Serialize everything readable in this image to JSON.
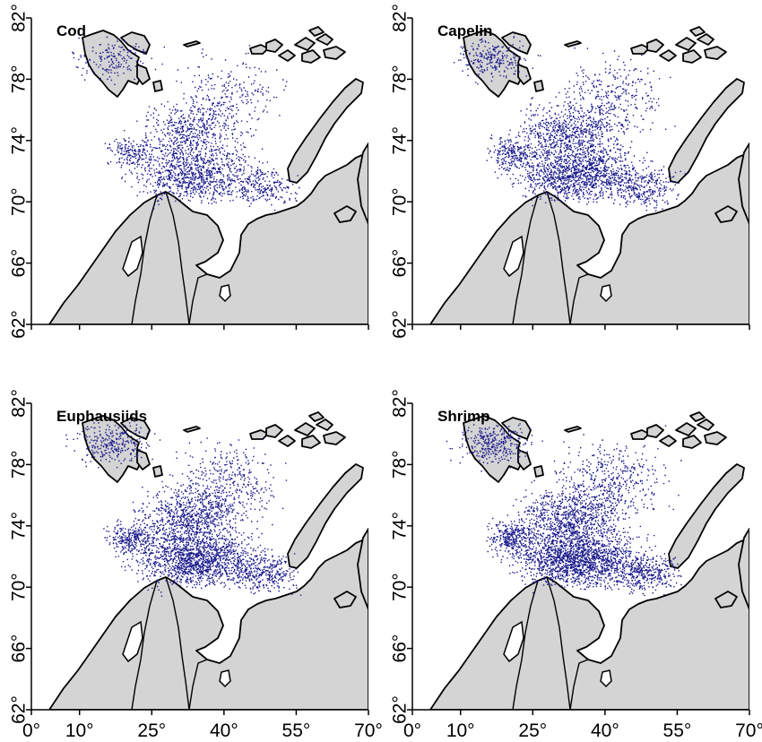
{
  "figure": {
    "panels": [
      {
        "id": "cod",
        "title": "Cod",
        "density": 1.0
      },
      {
        "id": "capelin",
        "title": "Capelin",
        "density": 1.35
      },
      {
        "id": "euphausiids",
        "title": "Euphausiids",
        "density": 1.55
      },
      {
        "id": "shrimp",
        "title": "Shrimp",
        "density": 1.75
      }
    ],
    "longitude_ticks": [
      "0°",
      "10°",
      "25°",
      "40°",
      "55°",
      "70°"
    ],
    "latitude_ticks": [
      "62°",
      "66°",
      "70°",
      "74°",
      "78°",
      "82°"
    ],
    "colors": {
      "land": "#d4d4d4",
      "coastline": "#000000",
      "points": "#1a1a8c",
      "background": "#ffffff"
    }
  },
  "chart_data": {
    "type": "scatter",
    "x_axis": {
      "name": "",
      "range": [
        0,
        70
      ],
      "ticks": [
        0,
        10,
        25,
        40,
        55,
        70
      ]
    },
    "y_axis": {
      "name": "",
      "range": [
        62,
        82
      ],
      "ticks": [
        62,
        66,
        70,
        74,
        78,
        82
      ]
    },
    "series": [
      {
        "name": "Cod",
        "points": "survey stations where species recorded (dense blue dots, Barents Sea)"
      },
      {
        "name": "Capelin",
        "points": "survey stations where species recorded"
      },
      {
        "name": "Euphausiids",
        "points": "survey stations where species recorded"
      },
      {
        "name": "Shrimp",
        "points": "survey stations where species recorded"
      }
    ],
    "grid": false,
    "legend": "none"
  }
}
